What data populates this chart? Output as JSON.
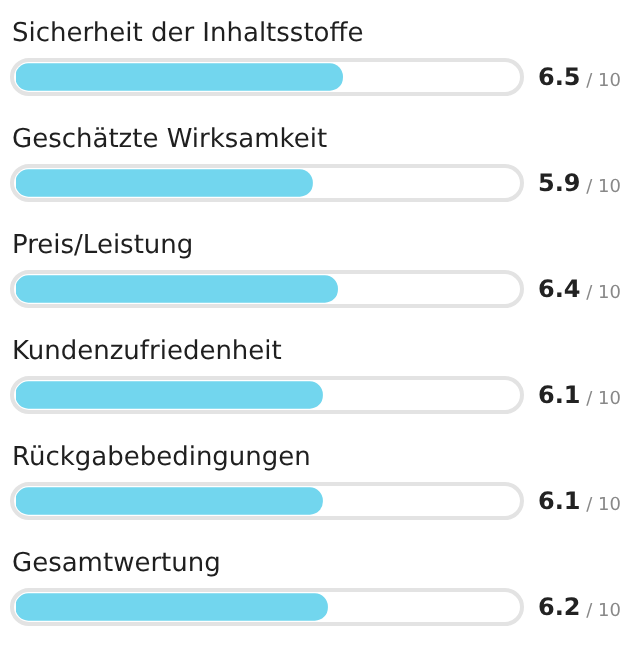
{
  "chart_data": {
    "type": "bar",
    "orientation": "horizontal",
    "categories": [
      "Sicherheit der Inhaltsstoffe",
      "Geschätzte Wirksamkeit",
      "Preis/Leistung",
      "Kundenzufriedenheit",
      "Rückgabebedingungen",
      "Gesamtwertung"
    ],
    "values": [
      6.5,
      5.9,
      6.4,
      6.1,
      6.1,
      6.2
    ],
    "data_labels": true,
    "annotations": [
      "/ 10",
      "/ 10",
      "/ 10",
      "/ 10",
      "/ 10",
      "/ 10"
    ],
    "color": "#72d6ee",
    "xlim": [
      0,
      10
    ],
    "tick_labels": "y"
  }
}
